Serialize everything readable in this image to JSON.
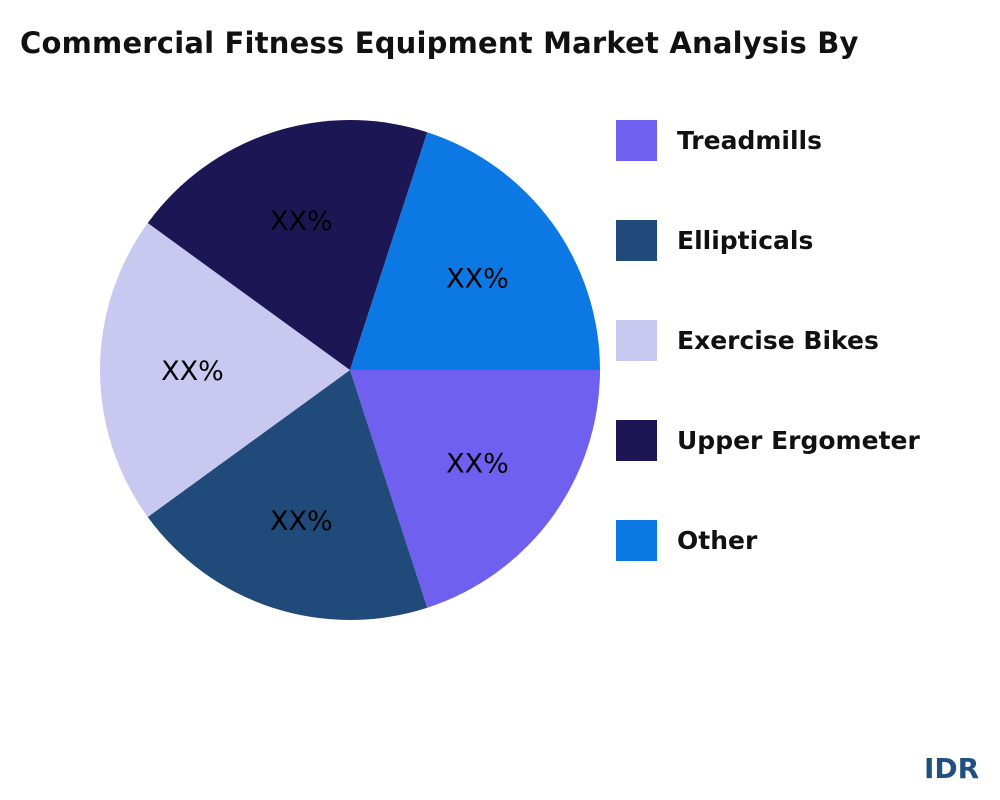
{
  "chart_data": {
    "type": "pie",
    "title": "Commercial Fitness Equipment Market Analysis By",
    "categories": [
      "Treadmills",
      "Ellipticals",
      "Exercise Bikes",
      "Upper Ergometer",
      "Other"
    ],
    "values": [
      20,
      20,
      20,
      20,
      20
    ],
    "data_labels": [
      "XX%",
      "XX%",
      "XX%",
      "XX%",
      "XX%"
    ],
    "colors": [
      "#6f60f0",
      "#1f4a7a",
      "#c8c8f0",
      "#1c1654",
      "#0c78e4"
    ],
    "start_angle": "3 o'clock",
    "direction": "clockwise",
    "legend_position": "right"
  },
  "logo": "IDR"
}
